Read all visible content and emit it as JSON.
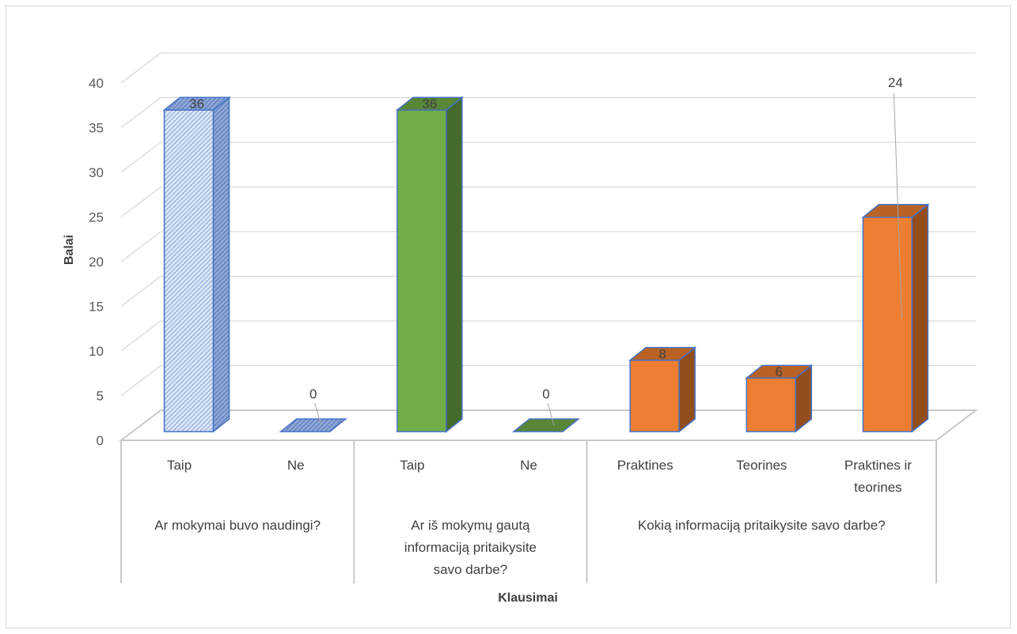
{
  "chart_data": {
    "type": "bar",
    "style": "3d-clustered-column",
    "ylabel": "Balai",
    "xlabel": "Klausimai",
    "ylim": [
      0,
      40
    ],
    "yticks": [
      0,
      5,
      10,
      15,
      20,
      25,
      30,
      35,
      40
    ],
    "grid": true,
    "groups": [
      {
        "label_lines": [
          "Ar mokymai buvo naudingi?"
        ],
        "categories": [
          {
            "label_lines": [
              "Taip"
            ],
            "value": 36,
            "label": "36",
            "color": "#c9d7f0",
            "pattern": true
          },
          {
            "label_lines": [
              "Ne"
            ],
            "value": 0,
            "label": "0",
            "color": "#c9d7f0",
            "pattern": true
          }
        ]
      },
      {
        "label_lines": [
          "Ar iš mokymų gautą",
          "informaciją pritaikysite",
          "savo darbe?"
        ],
        "categories": [
          {
            "label_lines": [
              "Taip"
            ],
            "value": 36,
            "label": "36",
            "color": "#70ad47",
            "pattern": false
          },
          {
            "label_lines": [
              "Ne"
            ],
            "value": 0,
            "label": "0",
            "color": "#70ad47",
            "pattern": false
          }
        ]
      },
      {
        "label_lines": [
          "Kokią informaciją pritaikysite savo darbe?"
        ],
        "categories": [
          {
            "label_lines": [
              "Praktines"
            ],
            "value": 8,
            "label": "8",
            "color": "#ed7d31",
            "pattern": false
          },
          {
            "label_lines": [
              "Teorines"
            ],
            "value": 6,
            "label": "6",
            "color": "#ed7d31",
            "pattern": false
          },
          {
            "label_lines": [
              "Praktines ir",
              "teorines"
            ],
            "value": 24,
            "label": "24",
            "color": "#ed7d31",
            "pattern": false
          }
        ]
      }
    ]
  }
}
